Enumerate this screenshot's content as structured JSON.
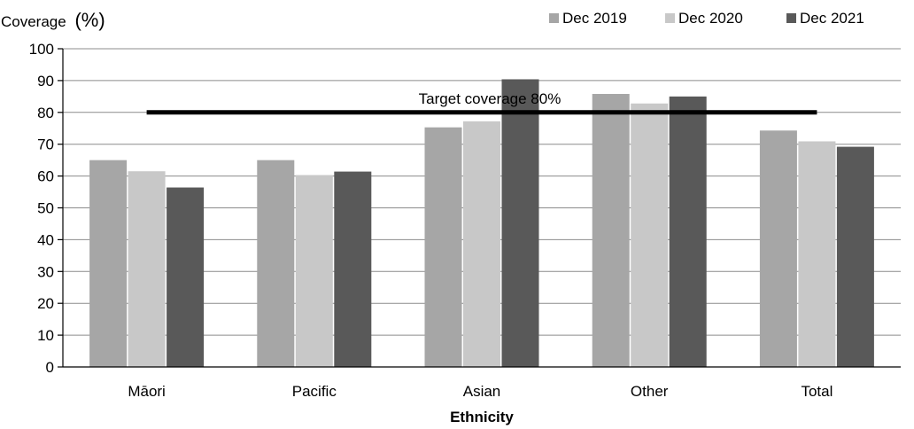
{
  "chart_data": {
    "type": "bar",
    "ylabel": "Coverage",
    "ylabel_unit": "(%)",
    "xlabel": "Ethnicity",
    "categories": [
      "Māori",
      "Pacific",
      "Asian",
      "Other",
      "Total"
    ],
    "series": [
      {
        "name": "Dec 2019",
        "color": "#a6a6a6",
        "values": [
          65,
          65,
          75.3,
          85.8,
          74.3
        ]
      },
      {
        "name": "Dec 2020",
        "color": "#c8c8c8",
        "values": [
          61.5,
          60.3,
          77.2,
          82.8,
          70.9
        ]
      },
      {
        "name": "Dec 2021",
        "color": "#595959",
        "values": [
          56.4,
          61.4,
          90.4,
          85,
          69.2
        ]
      }
    ],
    "ylim": [
      0,
      100
    ],
    "yticks": [
      0,
      10,
      20,
      30,
      40,
      50,
      60,
      70,
      80,
      90,
      100
    ],
    "grid": true,
    "legend_position": "top-right",
    "annotation": {
      "label": "Target coverage 80%",
      "value": 80
    }
  }
}
